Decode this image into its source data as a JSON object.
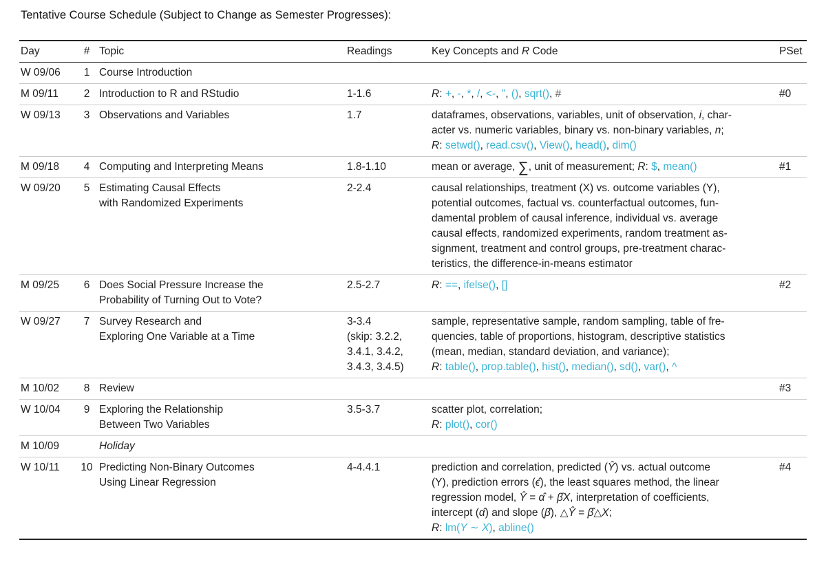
{
  "title": "Tentative Course Schedule (Subject to Change as Semester Progresses):",
  "colors": {
    "code": "#3cb4d4",
    "comment": "#6b6b6b"
  },
  "table": {
    "headers": {
      "day": "Day",
      "num": "#",
      "topic": "Topic",
      "readings": "Readings",
      "concepts_prefix": "Key Concepts and ",
      "concepts_r": "R",
      "concepts_suffix": " Code",
      "pset": "PSet"
    },
    "rows": [
      {
        "day": "W 09/06",
        "num": "1",
        "topic": [
          {
            "t": "Course Introduction",
            "s": "p"
          }
        ],
        "readings": [],
        "concepts": [],
        "pset": ""
      },
      {
        "day": "M 09/11",
        "num": "2",
        "topic": [
          {
            "t": "Introduction to R and RStudio",
            "s": "p"
          }
        ],
        "readings": [
          "1-1.6"
        ],
        "concepts": [
          [
            {
              "t": "R",
              "s": "i"
            },
            {
              "t": ":  ",
              "s": "p"
            },
            {
              "t": "+",
              "s": "c"
            },
            {
              "t": ", ",
              "s": "p"
            },
            {
              "t": "-",
              "s": "c"
            },
            {
              "t": ", ",
              "s": "p"
            },
            {
              "t": "*",
              "s": "c"
            },
            {
              "t": ", ",
              "s": "p"
            },
            {
              "t": "/",
              "s": "c"
            },
            {
              "t": ", ",
              "s": "p"
            },
            {
              "t": "<-",
              "s": "c"
            },
            {
              "t": ", ",
              "s": "p"
            },
            {
              "t": "\"",
              "s": "c"
            },
            {
              "t": ", ",
              "s": "p"
            },
            {
              "t": "()",
              "s": "c"
            },
            {
              "t": ", ",
              "s": "p"
            },
            {
              "t": "sqrt()",
              "s": "c"
            },
            {
              "t": ", ",
              "s": "p"
            },
            {
              "t": "#",
              "s": "g"
            }
          ]
        ],
        "pset": "#0"
      },
      {
        "day": "W 09/13",
        "num": "3",
        "topic": [
          {
            "t": "Observations and Variables",
            "s": "p"
          }
        ],
        "readings": [
          "1.7"
        ],
        "concepts": [
          [
            {
              "t": "dataframes, observations, variables, unit of observation, ",
              "s": "p"
            },
            {
              "t": "i",
              "s": "i"
            },
            {
              "t": ", char-",
              "s": "p"
            }
          ],
          [
            {
              "t": "acter vs. numeric variables, binary vs. non-binary variables, ",
              "s": "p"
            },
            {
              "t": "n",
              "s": "i"
            },
            {
              "t": ";",
              "s": "p"
            }
          ],
          [
            {
              "t": "R",
              "s": "i"
            },
            {
              "t": ":  ",
              "s": "p"
            },
            {
              "t": "setwd()",
              "s": "c"
            },
            {
              "t": ", ",
              "s": "p"
            },
            {
              "t": "read.csv()",
              "s": "c"
            },
            {
              "t": ", ",
              "s": "p"
            },
            {
              "t": "View()",
              "s": "c"
            },
            {
              "t": ", ",
              "s": "p"
            },
            {
              "t": "head()",
              "s": "c"
            },
            {
              "t": ", ",
              "s": "p"
            },
            {
              "t": "dim()",
              "s": "c"
            }
          ]
        ],
        "pset": ""
      },
      {
        "day": "M 09/18",
        "num": "4",
        "topic": [
          {
            "t": "Computing and Interpreting Means",
            "s": "p"
          }
        ],
        "readings": [
          "1.8-1.10"
        ],
        "concepts": [
          [
            {
              "t": "mean or average, ",
              "s": "p"
            },
            {
              "t": "∑",
              "s": "sum"
            },
            {
              "t": ", unit of measurement; ",
              "s": "p"
            },
            {
              "t": "R",
              "s": "i"
            },
            {
              "t": ":  ",
              "s": "p"
            },
            {
              "t": "$",
              "s": "c"
            },
            {
              "t": ", ",
              "s": "p"
            },
            {
              "t": "mean()",
              "s": "c"
            }
          ]
        ],
        "pset": "#1"
      },
      {
        "day": "W 09/20",
        "num": "5",
        "topic": [
          {
            "t": "Estimating Causal Effects",
            "s": "p"
          },
          {
            "t": "with Randomized Experiments",
            "s": "p"
          }
        ],
        "readings": [
          "2-2.4"
        ],
        "concepts": [
          [
            {
              "t": "causal relationships, treatment (X) vs. outcome variables (Y),",
              "s": "p"
            }
          ],
          [
            {
              "t": "potential outcomes, factual vs. counterfactual outcomes, fun-",
              "s": "p"
            }
          ],
          [
            {
              "t": "damental problem of causal inference, individual vs. average",
              "s": "p"
            }
          ],
          [
            {
              "t": "causal effects, randomized experiments, random treatment as-",
              "s": "p"
            }
          ],
          [
            {
              "t": "signment, treatment and control groups, pre-treatment charac-",
              "s": "p"
            }
          ],
          [
            {
              "t": "teristics, the difference-in-means estimator",
              "s": "p"
            }
          ]
        ],
        "pset": ""
      },
      {
        "day": "M 09/25",
        "num": "6",
        "topic": [
          {
            "t": "Does Social Pressure Increase the",
            "s": "p"
          },
          {
            "t": "Probability of Turning Out to Vote?",
            "s": "p"
          }
        ],
        "readings": [
          "2.5-2.7"
        ],
        "concepts": [
          [
            {
              "t": "R",
              "s": "i"
            },
            {
              "t": ":  ",
              "s": "p"
            },
            {
              "t": "==",
              "s": "c"
            },
            {
              "t": ", ",
              "s": "p"
            },
            {
              "t": "ifelse()",
              "s": "c"
            },
            {
              "t": ", ",
              "s": "p"
            },
            {
              "t": "[]",
              "s": "c"
            }
          ]
        ],
        "pset": "#2"
      },
      {
        "day": "W 09/27",
        "num": "7",
        "topic": [
          {
            "t": "Survey Research and",
            "s": "p"
          },
          {
            "t": "Exploring One Variable at a Time",
            "s": "p"
          }
        ],
        "readings": [
          "3-3.4",
          "(skip: 3.2.2,",
          "3.4.1, 3.4.2,",
          "3.4.3, 3.4.5)"
        ],
        "concepts": [
          [
            {
              "t": "sample, representative sample, random sampling, table of fre-",
              "s": "p"
            }
          ],
          [
            {
              "t": "quencies, table of proportions, histogram, descriptive statistics",
              "s": "p"
            }
          ],
          [
            {
              "t": "(mean, median, standard deviation, and variance);",
              "s": "p"
            }
          ],
          [
            {
              "t": "R",
              "s": "i"
            },
            {
              "t": ":  ",
              "s": "p"
            },
            {
              "t": "table()",
              "s": "c"
            },
            {
              "t": ", ",
              "s": "p"
            },
            {
              "t": "prop.table()",
              "s": "c"
            },
            {
              "t": ", ",
              "s": "p"
            },
            {
              "t": "hist()",
              "s": "c"
            },
            {
              "t": ", ",
              "s": "p"
            },
            {
              "t": "median()",
              "s": "c"
            },
            {
              "t": ", ",
              "s": "p"
            },
            {
              "t": "sd()",
              "s": "c"
            },
            {
              "t": ", ",
              "s": "p"
            },
            {
              "t": "var()",
              "s": "c"
            },
            {
              "t": ", ",
              "s": "p"
            },
            {
              "t": "^",
              "s": "c"
            }
          ]
        ],
        "pset": ""
      },
      {
        "day": "M 10/02",
        "num": "8",
        "topic": [
          {
            "t": "Review",
            "s": "p"
          }
        ],
        "readings": [],
        "concepts": [],
        "pset": "#3"
      },
      {
        "day": "W 10/04",
        "num": "9",
        "topic": [
          {
            "t": "Exploring the Relationship",
            "s": "p"
          },
          {
            "t": "Between Two Variables",
            "s": "p"
          }
        ],
        "readings": [
          "3.5-3.7"
        ],
        "concepts": [
          [
            {
              "t": "scatter plot, correlation;",
              "s": "p"
            }
          ],
          [
            {
              "t": "R",
              "s": "i"
            },
            {
              "t": ":  ",
              "s": "p"
            },
            {
              "t": "plot()",
              "s": "c"
            },
            {
              "t": ", ",
              "s": "p"
            },
            {
              "t": "cor()",
              "s": "c"
            }
          ]
        ],
        "pset": ""
      },
      {
        "day": "M 10/09",
        "num": "",
        "topic": [
          {
            "t": "Holiday",
            "s": "i"
          }
        ],
        "readings": [],
        "concepts": [],
        "pset": ""
      },
      {
        "day": "W 10/11",
        "num": "10",
        "topic": [
          {
            "t": "Predicting Non-Binary Outcomes",
            "s": "p"
          },
          {
            "t": "Using Linear Regression",
            "s": "p"
          }
        ],
        "readings": [
          "4-4.4.1"
        ],
        "concepts": [
          [
            {
              "t": "prediction and correlation, predicted (",
              "s": "p"
            },
            {
              "t": "Ŷ",
              "s": "m"
            },
            {
              "t": ") vs. actual outcome",
              "s": "p"
            }
          ],
          [
            {
              "t": "(Y), prediction errors (",
              "s": "p"
            },
            {
              "t": "ϵ̂",
              "s": "m"
            },
            {
              "t": "), the least squares method, the linear",
              "s": "p"
            }
          ],
          [
            {
              "t": "regression model, ",
              "s": "p"
            },
            {
              "t": "Ŷ",
              "s": "m"
            },
            {
              "t": " = ",
              "s": "p"
            },
            {
              "t": "α̂",
              "s": "m"
            },
            {
              "t": " + ",
              "s": "p"
            },
            {
              "t": "β̂X",
              "s": "m"
            },
            {
              "t": ", interpretation of coefficients,",
              "s": "p"
            }
          ],
          [
            {
              "t": "intercept (",
              "s": "p"
            },
            {
              "t": "α̂",
              "s": "m"
            },
            {
              "t": ") and slope (",
              "s": "p"
            },
            {
              "t": "β̂",
              "s": "m"
            },
            {
              "t": "), △",
              "s": "p"
            },
            {
              "t": "Ŷ",
              "s": "m"
            },
            {
              "t": " = ",
              "s": "p"
            },
            {
              "t": "β̂",
              "s": "m"
            },
            {
              "t": "△",
              "s": "p"
            },
            {
              "t": "X",
              "s": "m"
            },
            {
              "t": ";",
              "s": "p"
            }
          ],
          [
            {
              "t": "R",
              "s": "i"
            },
            {
              "t": ":  ",
              "s": "p"
            },
            {
              "t": "lm(",
              "s": "c"
            },
            {
              "t": "Y ∼ X",
              "s": "ci"
            },
            {
              "t": ")",
              "s": "c"
            },
            {
              "t": ", ",
              "s": "p"
            },
            {
              "t": "abline()",
              "s": "c"
            }
          ]
        ],
        "pset": "#4"
      }
    ]
  }
}
